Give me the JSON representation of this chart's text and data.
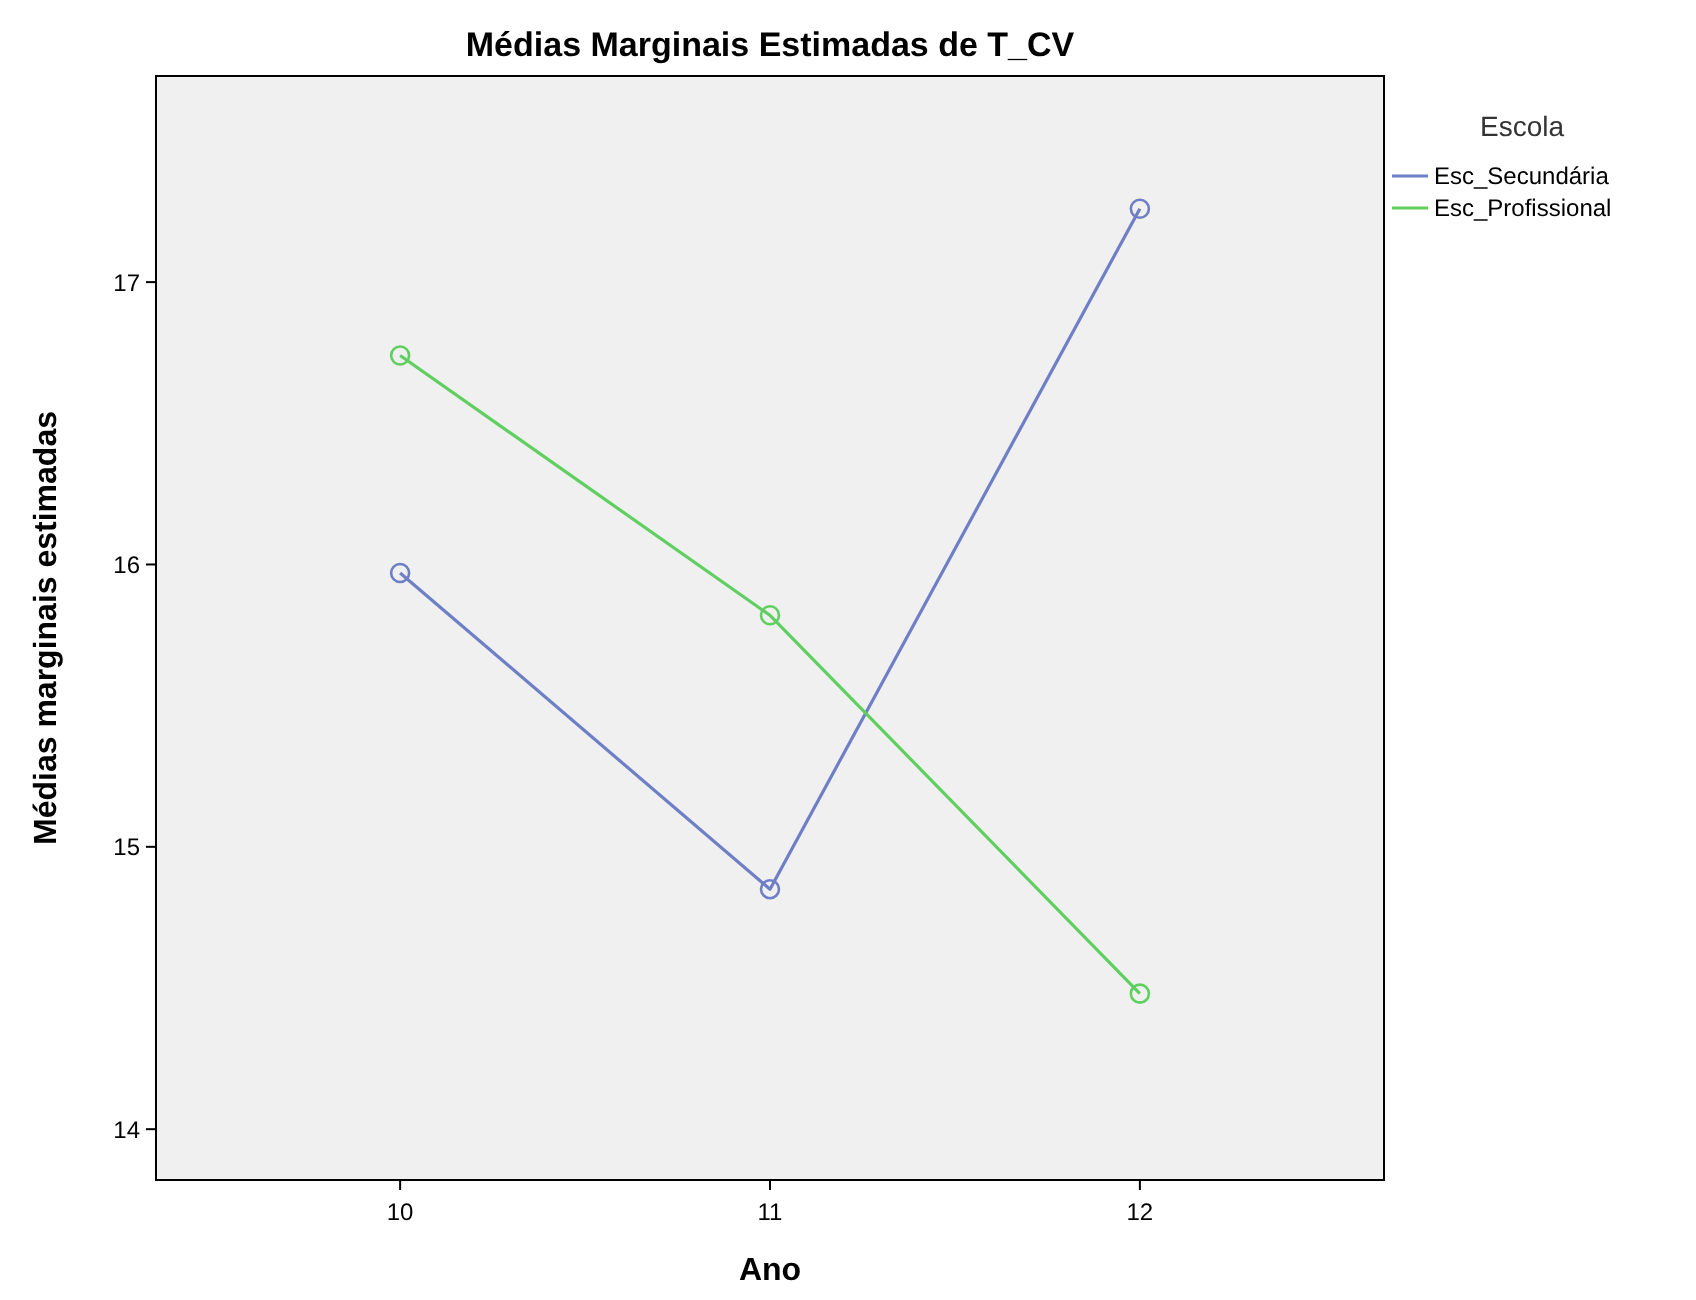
{
  "chart_data": {
    "type": "line",
    "title": "Médias Marginais Estimadas de T_CV",
    "xlabel": "Ano",
    "ylabel": "Médias marginais estimadas",
    "legend_title": "Escola",
    "categories": [
      "10",
      "11",
      "12"
    ],
    "series": [
      {
        "name": "Esc_Secundária",
        "color": "#6f7fc6",
        "values": [
          15.97,
          14.85,
          17.26
        ]
      },
      {
        "name": "Esc_Profissional",
        "color": "#5fcf5f",
        "values": [
          16.74,
          15.82,
          14.48
        ]
      }
    ],
    "ylim": [
      13.82,
      17.73
    ],
    "yticks": [
      14,
      15,
      16,
      17
    ],
    "grid": false,
    "legend": "top right",
    "marker": "circle",
    "line_style": "solid"
  }
}
